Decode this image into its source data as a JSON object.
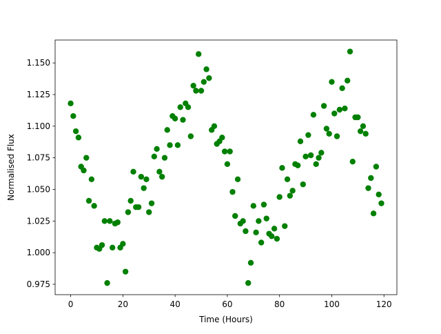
{
  "chart_data": {
    "type": "scatter",
    "xlabel": "Time (Hours)",
    "ylabel": "Normalised Flux",
    "color": "#008000",
    "grid": false,
    "xlim": [
      -5.95,
      124.95
    ],
    "ylim": [
      0.9668,
      1.1681
    ],
    "xticks": [
      0,
      20,
      40,
      60,
      80,
      100,
      120
    ],
    "yticks": [
      0.975,
      {
        "value": 1.0,
        "label": "1.000"
      },
      1.025,
      {
        "value": 1.05,
        "label": "1.050"
      },
      1.075,
      {
        "value": 1.1,
        "label": "1.100"
      },
      1.125,
      {
        "value": 1.15,
        "label": "1.150"
      }
    ],
    "x": [
      0,
      1,
      2,
      3,
      4,
      5,
      6,
      7,
      8,
      9,
      10,
      11,
      12,
      13,
      14,
      15,
      16,
      17,
      18,
      19,
      20,
      21,
      22,
      23,
      24,
      25,
      26,
      27,
      28,
      29,
      30,
      31,
      32,
      33,
      34,
      35,
      36,
      37,
      38,
      39,
      40,
      41,
      42,
      43,
      44,
      45,
      46,
      47,
      48,
      49,
      50,
      51,
      52,
      53,
      54,
      55,
      56,
      57,
      58,
      59,
      60,
      61,
      62,
      63,
      64,
      65,
      66,
      67,
      68,
      69,
      70,
      71,
      72,
      73,
      74,
      75,
      76,
      77,
      78,
      79,
      80,
      81,
      82,
      83,
      84,
      85,
      86,
      87,
      88,
      89,
      90,
      91,
      92,
      93,
      94,
      95,
      96,
      97,
      98,
      99,
      100,
      101,
      102,
      103,
      104,
      105,
      106,
      107,
      108,
      109,
      110,
      111,
      112,
      113,
      114,
      115,
      116,
      117,
      118,
      119
    ],
    "values": [
      1.118,
      1.108,
      1.096,
      1.091,
      1.068,
      1.065,
      1.075,
      1.041,
      1.058,
      1.037,
      1.004,
      1.003,
      1.006,
      1.025,
      0.976,
      1.025,
      1.004,
      1.023,
      1.024,
      1.004,
      1.007,
      0.985,
      1.032,
      1.041,
      1.064,
      1.036,
      1.036,
      1.06,
      1.051,
      1.058,
      1.032,
      1.039,
      1.076,
      1.082,
      1.064,
      1.06,
      1.075,
      1.097,
      1.085,
      1.108,
      1.106,
      1.085,
      1.115,
      1.105,
      1.118,
      1.115,
      1.092,
      1.132,
      1.128,
      1.157,
      1.128,
      1.135,
      1.145,
      1.138,
      1.097,
      1.1,
      1.086,
      1.088,
      1.091,
      1.08,
      1.07,
      1.08,
      1.048,
      1.029,
      1.058,
      1.023,
      1.025,
      1.017,
      0.976,
      0.992,
      1.037,
      1.016,
      1.025,
      1.008,
      1.038,
      1.027,
      1.015,
      1.013,
      1.019,
      1.011,
      1.044,
      1.067,
      1.021,
      1.058,
      1.045,
      1.049,
      1.07,
      1.069,
      1.088,
      1.054,
      1.076,
      1.093,
      1.077,
      1.109,
      1.07,
      1.075,
      1.079,
      1.116,
      1.098,
      1.094,
      1.135,
      1.11,
      1.092,
      1.113,
      1.13,
      1.114,
      1.136,
      1.159,
      1.072,
      1.107,
      1.107,
      1.096,
      1.1,
      1.094,
      1.051,
      1.059,
      1.031,
      1.068,
      1.046,
      1.039
    ]
  }
}
